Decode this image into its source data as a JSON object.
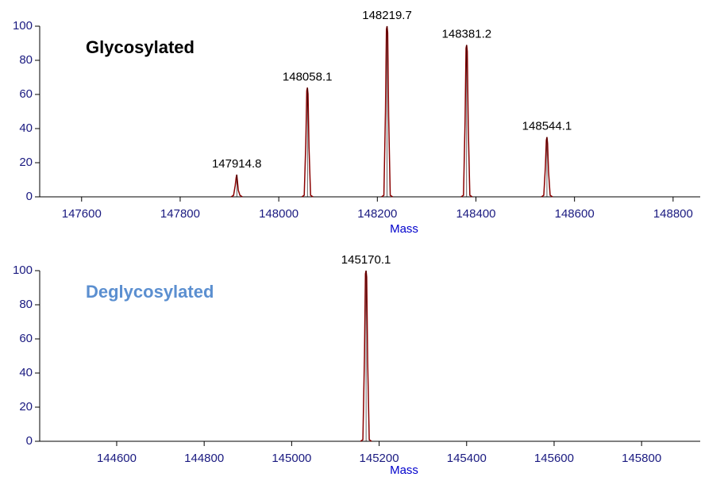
{
  "chart_data": [
    {
      "type": "peaks",
      "color": "#8b0000",
      "annotation": {
        "text": "Glycosylated",
        "color": "#000000"
      },
      "x_label": "Mass",
      "x": [
        147914.8,
        148058.1,
        148219.7,
        148381.2,
        148544.1
      ],
      "values": [
        13,
        64,
        100,
        89,
        35
      ],
      "xlim": [
        147515,
        148855
      ],
      "xticks": [
        147600,
        147800,
        148000,
        148200,
        148400,
        148600,
        148800
      ],
      "ylim": [
        0,
        100
      ],
      "yticks": [
        0,
        20,
        40,
        60,
        80,
        100
      ]
    },
    {
      "type": "peaks",
      "color": "#8b0000",
      "annotation": {
        "text": "Deglycosylated",
        "color": "#5b8fd0"
      },
      "x_label": "Mass",
      "x": [
        145170.1
      ],
      "values": [
        100
      ],
      "xlim": [
        144424,
        145934
      ],
      "xticks": [
        144600,
        144800,
        145000,
        145200,
        145400,
        145600,
        145800
      ],
      "ylim": [
        0,
        100
      ],
      "yticks": [
        0,
        20,
        40,
        60,
        80,
        100
      ]
    }
  ]
}
